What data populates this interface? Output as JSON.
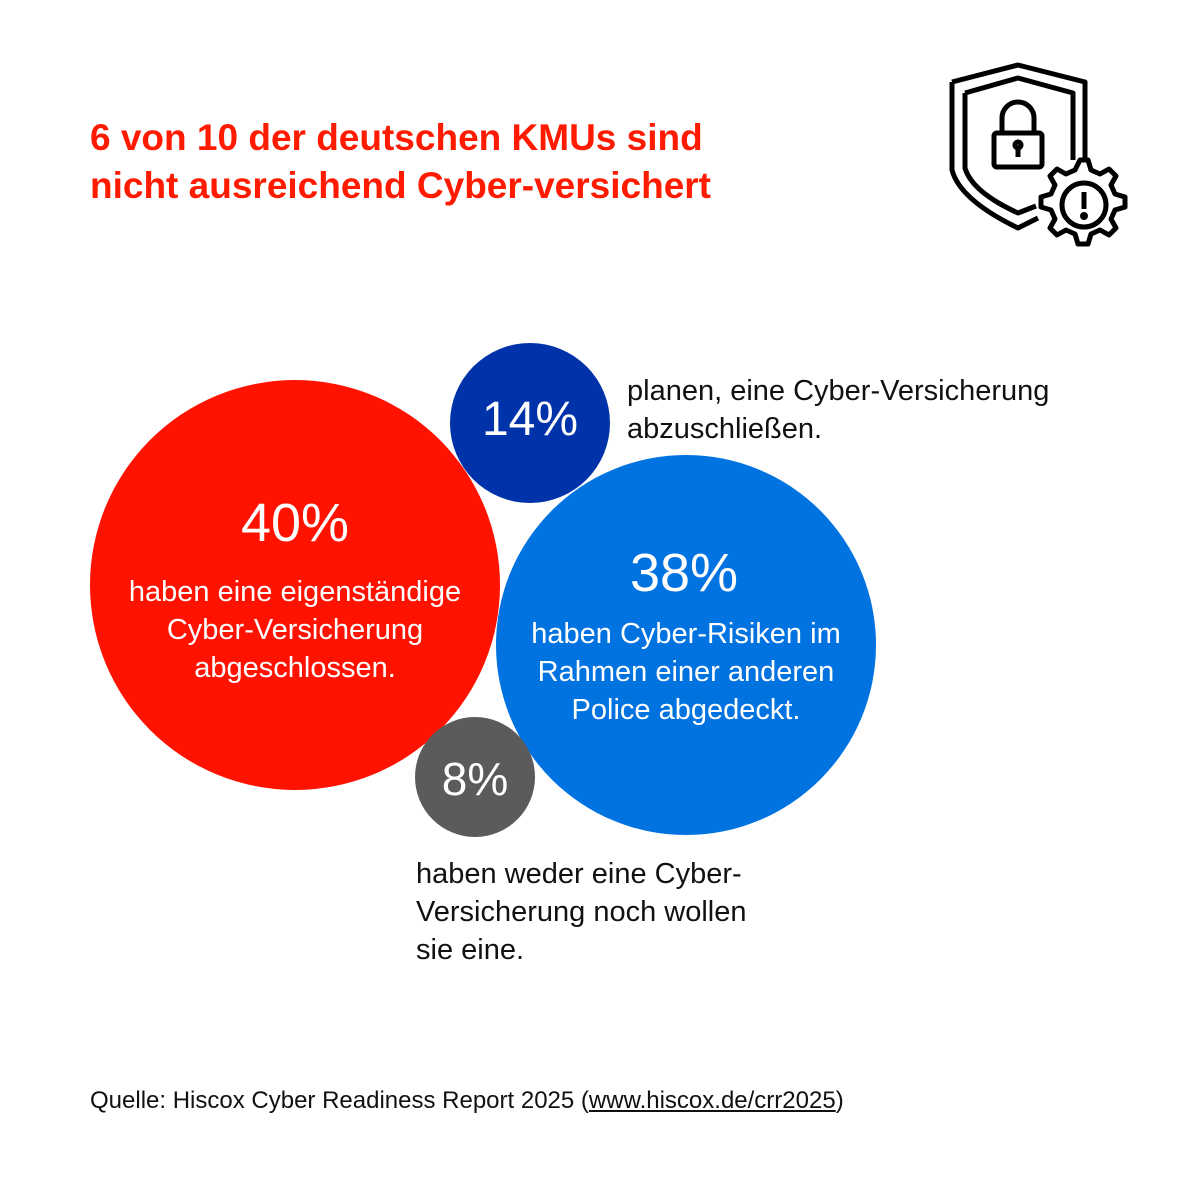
{
  "title": [
    "6 von 10 der deutschen KMUs sind",
    "nicht ausreichend Cyber-versichert"
  ],
  "title_color": "#ff1a00",
  "icon": "shield-lock-gear-warning-icon",
  "chart_data": {
    "type": "bubble",
    "series": [
      {
        "value": 40,
        "label": "40%",
        "text": [
          "haben eine eigenständige",
          "Cyber-Versicherung",
          "abgeschlossen."
        ],
        "color": "#ff1200"
      },
      {
        "value": 14,
        "label": "14%",
        "text": [
          "planen, eine Cyber-Versicherung",
          "abzuschließen."
        ],
        "color": "#0033aa"
      },
      {
        "value": 38,
        "label": "38%",
        "text": [
          "haben Cyber-Risiken im",
          "Rahmen einer anderen",
          "Police abgedeckt."
        ],
        "color": "#0073e1"
      },
      {
        "value": 8,
        "label": "8%",
        "text": [
          "haben weder eine Cyber-",
          "Versicherung noch wollen",
          "sie eine."
        ],
        "color": "#5b5b5b"
      }
    ]
  },
  "source": {
    "prefix": "Quelle: Hiscox Cyber Readiness Report 2025 (",
    "link": "www.hiscox.de/crr2025",
    "suffix": ")"
  }
}
